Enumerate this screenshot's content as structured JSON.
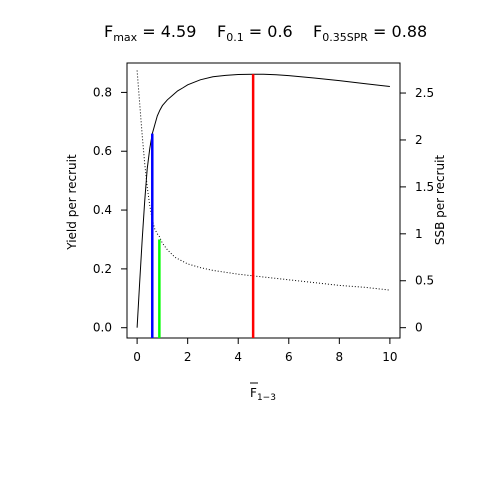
{
  "chart_data": {
    "type": "line",
    "title_parts": [
      {
        "main": "F",
        "sub": "max",
        "rest": " = 4.59"
      },
      {
        "main": "F",
        "sub": "0.1",
        "rest": " = 0.6"
      },
      {
        "main": "F",
        "sub": "0.35SPR",
        "rest": " = 0.88"
      }
    ],
    "xlabel": {
      "main": "F",
      "sub": "1−3"
    },
    "ylabel_left": "Yield per recruit",
    "ylabel_right": "SSB per recruit",
    "xlim": [
      -0.4,
      10.4
    ],
    "ylim_left": [
      -0.035,
      0.9
    ],
    "ylim_right": [
      -0.11,
      2.82
    ],
    "xticks": [
      0,
      2,
      4,
      6,
      8,
      10
    ],
    "xtick_labels": [
      "0",
      "2",
      "4",
      "6",
      "8",
      "10"
    ],
    "yticks_left": [
      0.0,
      0.2,
      0.4,
      0.6,
      0.8
    ],
    "ytick_labels_left": [
      "0.0",
      "0.2",
      "0.4",
      "0.6",
      "0.8"
    ],
    "yticks_right": [
      0,
      0.5,
      1,
      1.5,
      2,
      2.5
    ],
    "ytick_labels_right": [
      "0",
      "0.5",
      "1",
      "1.5",
      "2",
      "2.5"
    ],
    "series": [
      {
        "line": "solid",
        "color": "#000000",
        "axis": "left",
        "x": [
          0,
          0.1,
          0.2,
          0.3,
          0.4,
          0.5,
          0.6,
          0.7,
          0.8,
          0.9,
          1.0,
          1.2,
          1.4,
          1.6,
          1.8,
          2.0,
          2.5,
          3.0,
          3.5,
          4.0,
          4.59,
          5.0,
          5.5,
          6.0,
          7.0,
          8.0,
          9.0,
          10.0
        ],
        "y": [
          0,
          0.15,
          0.3,
          0.43,
          0.54,
          0.61,
          0.66,
          0.69,
          0.72,
          0.74,
          0.755,
          0.775,
          0.79,
          0.805,
          0.815,
          0.826,
          0.843,
          0.853,
          0.858,
          0.861,
          0.862,
          0.862,
          0.86,
          0.857,
          0.849,
          0.84,
          0.83,
          0.82
        ]
      },
      {
        "line": "dotted",
        "color": "#000000",
        "axis": "right",
        "x": [
          0,
          0.1,
          0.2,
          0.3,
          0.4,
          0.5,
          0.6,
          0.7,
          0.8,
          0.88,
          1.0,
          1.2,
          1.5,
          2.0,
          2.5,
          3.0,
          4.0,
          5.0,
          6.0,
          7.0,
          8.0,
          9.0,
          10.0
        ],
        "y": [
          2.74,
          2.4,
          2.05,
          1.75,
          1.5,
          1.3,
          1.15,
          1.05,
          1.0,
          0.97,
          0.9,
          0.83,
          0.75,
          0.68,
          0.64,
          0.61,
          0.57,
          0.54,
          0.51,
          0.48,
          0.45,
          0.43,
          0.4
        ]
      }
    ],
    "reference_lines": [
      {
        "label": "F0.1",
        "x": 0.6,
        "y_top": 0.66,
        "color": "#0000ff"
      },
      {
        "label": "F0.35SPR",
        "x": 0.88,
        "y_top": 0.3,
        "color": "#00ff00"
      },
      {
        "label": "Fmax",
        "x": 4.59,
        "y_top": 0.862,
        "color": "#ff0000"
      }
    ]
  }
}
